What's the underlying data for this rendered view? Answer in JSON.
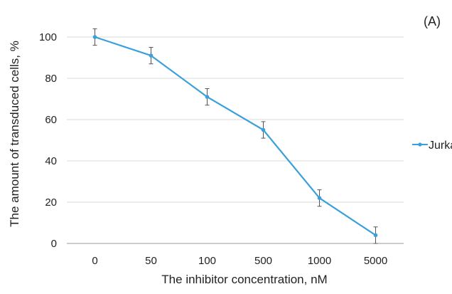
{
  "panel_label": "(A)",
  "chart_data": {
    "type": "line",
    "categories": [
      "0",
      "50",
      "100",
      "500",
      "1000",
      "5000"
    ],
    "series": [
      {
        "name": "Jurkat",
        "values": [
          100,
          91,
          71,
          55,
          22,
          4
        ],
        "errors": [
          4,
          4,
          4,
          4,
          4,
          4
        ],
        "color": "#3aa0dc"
      }
    ],
    "title": "",
    "xlabel": "The inhibitor concentration, nM",
    "ylabel": "The amount of transduced cells, %",
    "ylim": [
      0,
      100
    ],
    "yticks": [
      0,
      20,
      40,
      60,
      80,
      100
    ],
    "grid": true,
    "legend_position": "right"
  }
}
